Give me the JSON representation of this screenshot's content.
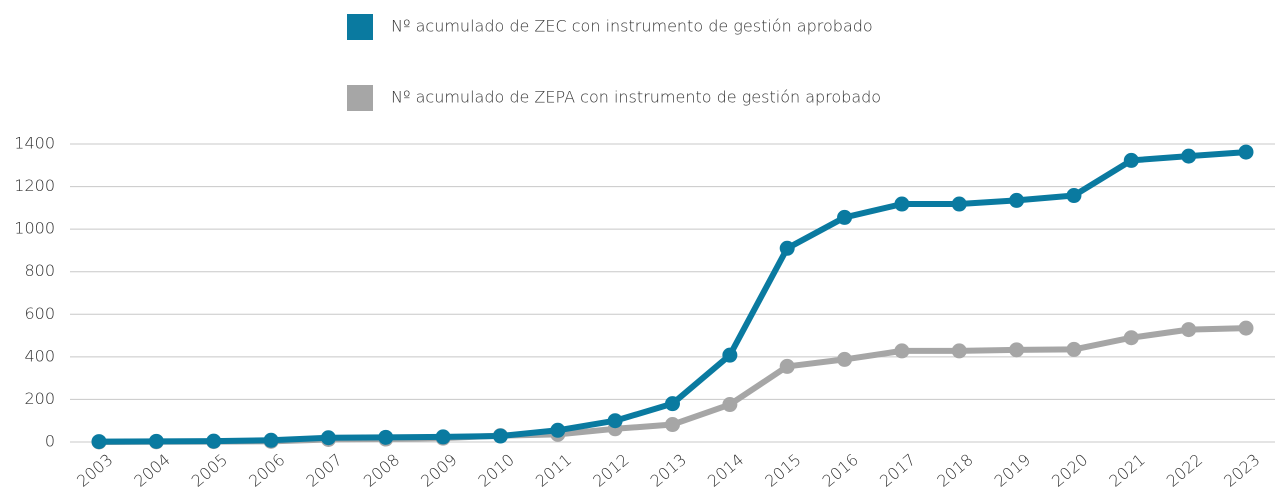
{
  "chart_data": {
    "type": "line",
    "categories": [
      "2003",
      "2004",
      "2005",
      "2006",
      "2007",
      "2008",
      "2009",
      "2010",
      "2011",
      "2012",
      "2013",
      "2014",
      "2015",
      "2016",
      "2017",
      "2018",
      "2019",
      "2020",
      "2021",
      "2022",
      "2023"
    ],
    "series": [
      {
        "name": "Nº acumulado de ZEC con instrumento de gestión aprobado",
        "color": "#0a7aa0",
        "values": [
          2,
          3,
          4,
          8,
          20,
          22,
          24,
          28,
          55,
          100,
          180,
          408,
          910,
          1055,
          1118,
          1118,
          1135,
          1158,
          1323,
          1343,
          1362
        ]
      },
      {
        "name": "Nº acumulado de ZEPA con instrumento de gestión aprobado",
        "color": "#a6a6a6",
        "values": [
          0,
          1,
          2,
          3,
          12,
          14,
          18,
          30,
          36,
          62,
          82,
          176,
          355,
          388,
          428,
          428,
          433,
          435,
          490,
          528,
          535
        ]
      }
    ],
    "ylim": [
      0,
      1400
    ],
    "yticks": [
      0,
      200,
      400,
      600,
      800,
      1000,
      1200,
      1400
    ],
    "grid": true
  }
}
